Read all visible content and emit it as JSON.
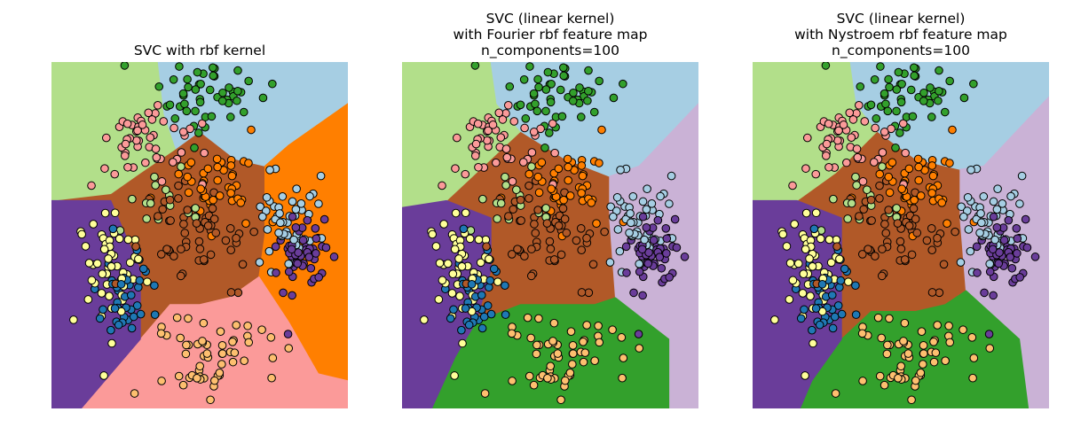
{
  "chart_data": [
    {
      "type": "scatter",
      "title_lines": [
        "SVC with rbf kernel"
      ],
      "xlim": [
        0,
        100
      ],
      "ylim": [
        0,
        100
      ],
      "grid": false,
      "axes_visible": false,
      "regions": [
        {
          "class": "lightgreen",
          "color": "#b2df8a",
          "polygon": [
            [
              0,
              100
            ],
            [
              36,
              100
            ],
            [
              38,
              85
            ],
            [
              42,
              75
            ],
            [
              30,
              68
            ],
            [
              20,
              62
            ],
            [
              0,
              60
            ]
          ]
        },
        {
          "class": "lightblue",
          "color": "#a6cee3",
          "polygon": [
            [
              36,
              100
            ],
            [
              100,
              100
            ],
            [
              100,
              88
            ],
            [
              80,
              76
            ],
            [
              72,
              70
            ],
            [
              62,
              72
            ],
            [
              50,
              80
            ],
            [
              42,
              75
            ],
            [
              38,
              85
            ]
          ]
        },
        {
          "class": "orange",
          "color": "#ff7f00",
          "polygon": [
            [
              100,
              88
            ],
            [
              100,
              8
            ],
            [
              90,
              10
            ],
            [
              80,
              25
            ],
            [
              70,
              38
            ],
            [
              72,
              50
            ],
            [
              72,
              70
            ],
            [
              80,
              76
            ]
          ]
        },
        {
          "class": "pink",
          "color": "#fb9a99",
          "polygon": [
            [
              10,
              0
            ],
            [
              100,
              0
            ],
            [
              100,
              8
            ],
            [
              90,
              10
            ],
            [
              80,
              25
            ],
            [
              70,
              38
            ],
            [
              60,
              32
            ],
            [
              50,
              30
            ],
            [
              40,
              30
            ],
            [
              30,
              20
            ],
            [
              20,
              10
            ]
          ]
        },
        {
          "class": "purple",
          "color": "#6a3d9a",
          "polygon": [
            [
              0,
              60
            ],
            [
              20,
              60
            ],
            [
              25,
              50
            ],
            [
              30,
              40
            ],
            [
              30,
              28
            ],
            [
              30,
              20
            ],
            [
              20,
              10
            ],
            [
              10,
              0
            ],
            [
              0,
              0
            ]
          ]
        }
      ],
      "background_region": {
        "class": "brown",
        "color": "#b15928"
      }
    },
    {
      "type": "scatter",
      "title_lines": [
        "SVC (linear kernel)",
        "with Fourier rbf feature map",
        "n_components=100"
      ],
      "xlim": [
        0,
        100
      ],
      "ylim": [
        0,
        100
      ],
      "grid": false,
      "axes_visible": false,
      "regions": [
        {
          "class": "lightgreen",
          "color": "#b2df8a",
          "polygon": [
            [
              0,
              100
            ],
            [
              30,
              100
            ],
            [
              32,
              88
            ],
            [
              40,
              80
            ],
            [
              25,
              68
            ],
            [
              15,
              60
            ],
            [
              0,
              58
            ]
          ]
        },
        {
          "class": "lightblue",
          "color": "#a6cee3",
          "polygon": [
            [
              30,
              100
            ],
            [
              100,
              100
            ],
            [
              100,
              88
            ],
            [
              80,
              70
            ],
            [
              70,
              67
            ],
            [
              55,
              72
            ],
            [
              40,
              80
            ],
            [
              32,
              88
            ]
          ]
        },
        {
          "class": "lavender",
          "color": "#cab2d6",
          "polygon": [
            [
              100,
              88
            ],
            [
              100,
              0
            ],
            [
              90,
              0
            ],
            [
              90,
              20
            ],
            [
              72,
              32
            ],
            [
              70,
              55
            ],
            [
              70,
              67
            ],
            [
              80,
              70
            ]
          ]
        },
        {
          "class": "green",
          "color": "#33a02c",
          "polygon": [
            [
              10,
              0
            ],
            [
              90,
              0
            ],
            [
              90,
              20
            ],
            [
              72,
              32
            ],
            [
              65,
              30
            ],
            [
              55,
              30
            ],
            [
              40,
              30
            ],
            [
              25,
              25
            ],
            [
              18,
              15
            ]
          ]
        },
        {
          "class": "purple",
          "color": "#6a3d9a",
          "polygon": [
            [
              0,
              58
            ],
            [
              15,
              60
            ],
            [
              30,
              55
            ],
            [
              30,
              40
            ],
            [
              25,
              25
            ],
            [
              18,
              15
            ],
            [
              10,
              0
            ],
            [
              0,
              0
            ]
          ]
        }
      ],
      "background_region": {
        "class": "brown",
        "color": "#b15928"
      }
    },
    {
      "type": "scatter",
      "title_lines": [
        "SVC (linear kernel)",
        "with Nystroem rbf feature map",
        "n_components=100"
      ],
      "xlim": [
        0,
        100
      ],
      "ylim": [
        0,
        100
      ],
      "grid": false,
      "axes_visible": false,
      "regions": [
        {
          "class": "lightgreen",
          "color": "#b2df8a",
          "polygon": [
            [
              0,
              100
            ],
            [
              33,
              100
            ],
            [
              35,
              88
            ],
            [
              42,
              80
            ],
            [
              28,
              68
            ],
            [
              15,
              60
            ],
            [
              0,
              60
            ]
          ]
        },
        {
          "class": "lightblue",
          "color": "#a6cee3",
          "polygon": [
            [
              33,
              100
            ],
            [
              100,
              100
            ],
            [
              100,
              90
            ],
            [
              78,
              70
            ],
            [
              70,
              69
            ],
            [
              55,
              72
            ],
            [
              42,
              80
            ],
            [
              35,
              88
            ]
          ]
        },
        {
          "class": "lavender",
          "color": "#cab2d6",
          "polygon": [
            [
              100,
              90
            ],
            [
              100,
              0
            ],
            [
              93,
              0
            ],
            [
              90,
              20
            ],
            [
              72,
              34
            ],
            [
              70,
              55
            ],
            [
              70,
              69
            ],
            [
              78,
              70
            ]
          ]
        },
        {
          "class": "green",
          "color": "#33a02c",
          "polygon": [
            [
              16,
              0
            ],
            [
              93,
              0
            ],
            [
              90,
              20
            ],
            [
              72,
              34
            ],
            [
              65,
              30
            ],
            [
              55,
              28
            ],
            [
              40,
              28
            ],
            [
              30,
              20
            ],
            [
              20,
              8
            ]
          ]
        },
        {
          "class": "purple",
          "color": "#6a3d9a",
          "polygon": [
            [
              0,
              60
            ],
            [
              15,
              60
            ],
            [
              30,
              55
            ],
            [
              30,
              40
            ],
            [
              30,
              20
            ],
            [
              20,
              8
            ],
            [
              16,
              0
            ],
            [
              0,
              0
            ]
          ]
        }
      ],
      "background_region": {
        "class": "brown",
        "color": "#b15928"
      }
    }
  ],
  "point_clusters": [
    {
      "class": "green",
      "color": "#33a02c",
      "center": [
        54,
        90
      ],
      "spread": [
        9,
        6
      ],
      "count": 50
    },
    {
      "class": "pink",
      "color": "#fb9a99",
      "center": [
        32,
        77
      ],
      "spread": [
        8,
        6
      ],
      "count": 50
    },
    {
      "class": "orange",
      "color": "#ff7f00",
      "center": [
        54,
        64
      ],
      "spread": [
        8,
        5
      ],
      "count": 45
    },
    {
      "class": "brown",
      "color": "#b15928",
      "center": [
        48,
        50
      ],
      "spread": [
        9,
        8
      ],
      "count": 60
    },
    {
      "class": "lightblue",
      "color": "#a6cee3",
      "center": [
        80,
        55
      ],
      "spread": [
        5,
        6
      ],
      "count": 50
    },
    {
      "class": "purple",
      "color": "#6a3d9a",
      "center": [
        86,
        45
      ],
      "spread": [
        5,
        5
      ],
      "count": 50
    },
    {
      "class": "yellow",
      "color": "#ffff99",
      "center": [
        19,
        40
      ],
      "spread": [
        6,
        9
      ],
      "count": 50
    },
    {
      "class": "blue",
      "color": "#1f78b4",
      "center": [
        25,
        31
      ],
      "spread": [
        5,
        6
      ],
      "count": 40
    },
    {
      "class": "lightorange",
      "color": "#fdbf6f",
      "center": [
        54,
        16
      ],
      "spread": [
        10,
        6
      ],
      "count": 55
    },
    {
      "class": "lightgreen",
      "color": "#b2df8a",
      "center": [
        40,
        59
      ],
      "spread": [
        8,
        6
      ],
      "count": 15
    }
  ],
  "point_seed": 7
}
